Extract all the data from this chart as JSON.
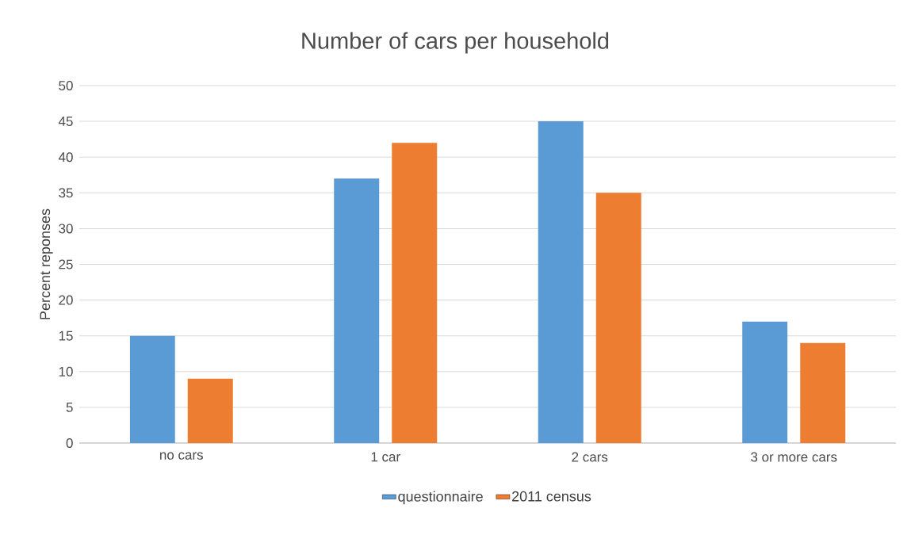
{
  "chart_data": {
    "type": "bar",
    "title": "Number of cars per household",
    "ylabel": "Percent reponses",
    "categories": [
      "no cars",
      "1 car",
      "2 cars",
      "3 or more cars"
    ],
    "series": [
      {
        "name": "questionnaire",
        "color": "#5b9bd5",
        "values": [
          15,
          37,
          45,
          17
        ]
      },
      {
        "name": "2011 census",
        "color": "#ed7d31",
        "values": [
          9,
          42,
          35,
          14
        ]
      }
    ],
    "ylim": [
      0,
      50
    ],
    "yticks": [
      0,
      5,
      10,
      15,
      20,
      25,
      30,
      35,
      40,
      45,
      50
    ],
    "grid": "y",
    "legend": "bottom"
  }
}
